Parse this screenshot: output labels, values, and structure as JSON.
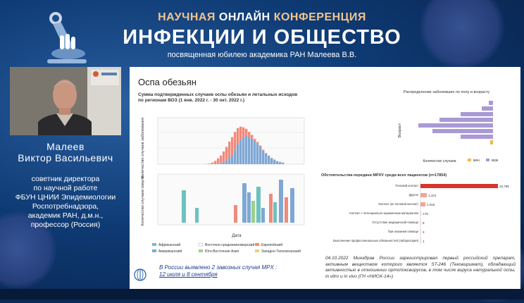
{
  "header": {
    "line1_a": "НАУЧНАЯ",
    "line1_b": "ОНЛАЙН",
    "line1_c": "КОНФЕРЕНЦИЯ",
    "title": "ИНФЕКЦИИ И ОБЩЕСТВО",
    "subtitle": "посвященная юбилею академика РАН Малеева В.В."
  },
  "speaker": {
    "name_line1": "Малеев",
    "name_line2": "Виктор Васильевич",
    "role_lines": [
      "советник директора",
      "по научной работе",
      "ФБУН ЦНИИ Эпидемиологии",
      "Роспотребнадзора,",
      "академик РАН, д.м.н.,",
      "профессор (Россия)"
    ]
  },
  "slide": {
    "title": "Оспа обезьян",
    "left_chart_title": "Сумма подтвержденных случаев оспы обезьян и летальных исходов по регионам ВОЗ (1 янв. 2022 г. - 30 окт. 2022 г.)",
    "ylabel_top": "Количество случаев заболевания",
    "ylabel_bottom": "Количество случаев смерти",
    "xlabel": "Дата",
    "legend": [
      "Африканский",
      "Восточно-средиземноморский",
      "Европейский",
      "Американский",
      "Юго-Восточная Азия",
      "Западно-Тихоокеанский"
    ],
    "right_top_title": "Распределение заболевших по полу и возрасту",
    "right_top_ylabel": "Возраст",
    "right_top_xlabel": "Количество случаев",
    "right_top_legend": [
      "жен",
      "муж"
    ],
    "right_bottom_title": "Обстоятельства передачи MPXV среди всех пациентов (n=17854)",
    "bar_labels": [
      "Половой контакт",
      "Другое",
      "Контакт (не половой контакт)",
      "Контакт с потенциально заражённым материалом",
      "Отсутствие медицинской помощи",
      "При оказании помощи",
      "Выполнение профессиональных обязанностей (лаборатория)"
    ],
    "bar_values": [
      "15,785",
      "1,321",
      "1,015",
      "179",
      "8",
      "3",
      "1"
    ],
    "note_russia_1": "В России выявлено 2 завозных случая MPX :",
    "note_russia_2": "12 июля и 8 сентября",
    "note_drug": "04.10.2022 Минздрав России зарегистрировал первый российский препарат, активным веществом которого является ST-246 (Тековиримат), обладающий активностью в отношении ортопоксвирусов, в том числе вируса натуральной оспы, in vitro и in vivo (ГН «НИОХ-14»)"
  },
  "chart_data": {
    "type": "bar",
    "title": "Сумма подтвержденных случаев оспы обезьян и летальных исходов по регионам ВОЗ (1 янв. 2022 г. - 30 окт. 2022 г.)",
    "xlabel": "Дата",
    "ylabel": "Количество случаев заболевания",
    "series": [
      {
        "name": "Американский",
        "values": [
          0,
          0,
          0,
          0,
          0,
          0,
          0,
          0,
          0,
          0,
          0,
          0,
          5,
          10,
          20,
          40,
          80,
          150,
          300,
          500,
          800,
          1200,
          1900,
          2700,
          3200,
          3600,
          3800,
          3600,
          3400,
          3000,
          2700,
          2300,
          1800,
          1400,
          1100,
          800,
          600,
          400,
          300,
          200
        ]
      },
      {
        "name": "Европейский",
        "values": [
          0,
          0,
          0,
          0,
          0,
          0,
          0,
          0,
          0,
          0,
          0,
          5,
          30,
          80,
          200,
          400,
          700,
          1000,
          1400,
          1800,
          2200,
          2400,
          2400,
          2100,
          1800,
          1300,
          900,
          700,
          500,
          350,
          250,
          180,
          120,
          80,
          50,
          30,
          20,
          10,
          5,
          5
        ]
      }
    ],
    "colors": {
      "Африканский": "#6cc2c0",
      "Американский": "#7fa7d4",
      "Европейский": "#f08a7a",
      "Восточно-средиземноморский": "#ffffff",
      "Юго-Восточная Азия": "#9bd08a",
      "Западно-Тихоокеанский": "#e8d27a"
    }
  }
}
